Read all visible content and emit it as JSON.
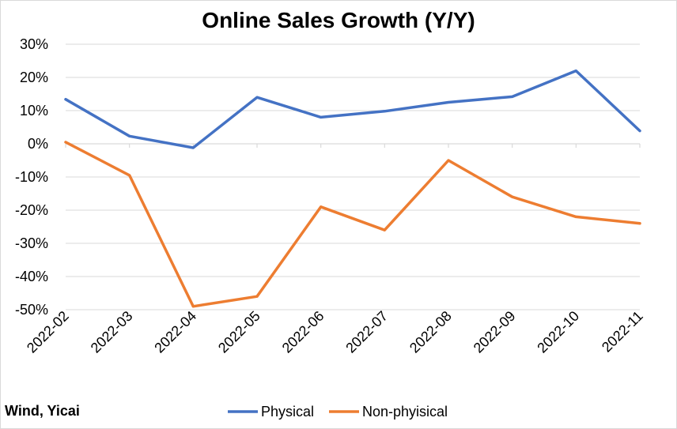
{
  "chart_data": {
    "type": "line",
    "title": "Online Sales Growth (Y/Y)",
    "xlabel": "",
    "ylabel": "",
    "x": [
      "2022-02",
      "2022-03",
      "2022-04",
      "2022-05",
      "2022-06",
      "2022-07",
      "2022-08",
      "2022-09",
      "2022-10",
      "2022-11"
    ],
    "series": [
      {
        "name": "Physical",
        "color": "#4472c4",
        "values": [
          13.4,
          2.3,
          -1.2,
          14.0,
          8.0,
          9.8,
          12.5,
          14.2,
          22.0,
          3.9
        ]
      },
      {
        "name": "Non-phyisical",
        "color": "#ed7d31",
        "values": [
          0.5,
          -9.5,
          -49.0,
          -46.0,
          -19.0,
          -26.0,
          -5.0,
          -16.0,
          -22.0,
          -24.0
        ]
      }
    ],
    "ylim": [
      -50,
      30
    ],
    "y_ticks": [
      30,
      20,
      10,
      0,
      -10,
      -20,
      -30,
      -40,
      -50
    ],
    "y_tick_labels": [
      "30%",
      "20%",
      "10%",
      "0%",
      "-10%",
      "-20%",
      "-30%",
      "-40%",
      "-50%"
    ],
    "grid": true,
    "legend_position": "bottom"
  },
  "source_note": "Wind, Yicai"
}
